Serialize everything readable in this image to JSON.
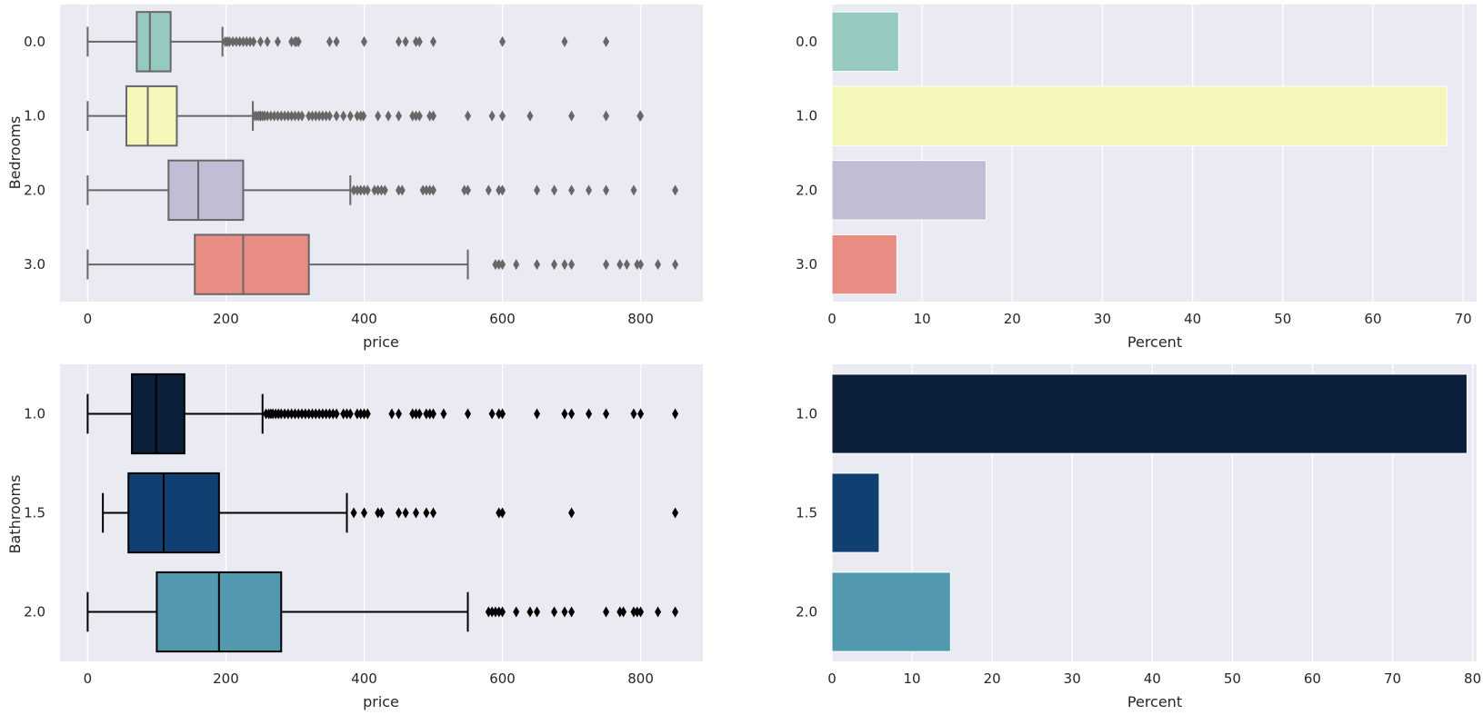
{
  "chart_data": [
    {
      "type": "boxplot",
      "orientation": "horizontal",
      "xlabel": "price",
      "ylabel": "Bedrooms",
      "xlim": [
        -40,
        890
      ],
      "xticks": [
        0,
        200,
        400,
        600,
        800
      ],
      "categories": [
        "0.0",
        "1.0",
        "2.0",
        "3.0"
      ],
      "grid": true,
      "box_edge_color": "#676767",
      "boxes": [
        {
          "category": "0.0",
          "color": "#96c9bf",
          "whisker_low": 0,
          "q1": 71,
          "median": 90,
          "q3": 120,
          "whisker_high": 195,
          "outliers": [
            199,
            202,
            205,
            210,
            215,
            220,
            225,
            230,
            235,
            240,
            250,
            260,
            275,
            295,
            300,
            302,
            305,
            350,
            360,
            400,
            450,
            460,
            475,
            480,
            500,
            600,
            690,
            750
          ]
        },
        {
          "category": "1.0",
          "color": "#f5f6b9",
          "whisker_low": 0,
          "q1": 56,
          "median": 87,
          "q3": 129,
          "whisker_high": 239,
          "outliers": [
            242,
            245,
            248,
            250,
            253,
            256,
            260,
            265,
            270,
            275,
            280,
            285,
            290,
            295,
            300,
            305,
            310,
            320,
            325,
            330,
            335,
            340,
            345,
            350,
            360,
            370,
            380,
            390,
            395,
            399,
            420,
            435,
            450,
            470,
            475,
            480,
            495,
            500,
            550,
            585,
            600,
            640,
            700,
            750,
            799,
            800
          ]
        },
        {
          "category": "2.0",
          "color": "#c0bdd5",
          "whisker_low": 0,
          "q1": 117,
          "median": 160,
          "q3": 225,
          "whisker_high": 380,
          "outliers": [
            385,
            390,
            395,
            400,
            405,
            415,
            420,
            425,
            430,
            450,
            455,
            485,
            490,
            495,
            500,
            545,
            550,
            580,
            595,
            600,
            650,
            675,
            700,
            725,
            750,
            790,
            850
          ]
        },
        {
          "category": "3.0",
          "color": "#e88d84",
          "whisker_low": 0,
          "q1": 155,
          "median": 225,
          "q3": 320,
          "whisker_high": 550,
          "outliers": [
            590,
            595,
            600,
            620,
            650,
            675,
            690,
            700,
            750,
            770,
            780,
            795,
            800,
            825,
            850
          ]
        }
      ]
    },
    {
      "type": "bar",
      "orientation": "horizontal",
      "xlabel": "Percent",
      "ylabel": "",
      "xlim": [
        0,
        71.5
      ],
      "xticks": [
        0,
        10,
        20,
        30,
        40,
        50,
        60,
        70
      ],
      "categories": [
        "0.0",
        "1.0",
        "2.0",
        "3.0"
      ],
      "values": [
        7.4,
        68.2,
        17.1,
        7.2
      ],
      "colors": [
        "#96c9bf",
        "#f5f6b9",
        "#c0bdd5",
        "#e88d84"
      ],
      "grid": true
    },
    {
      "type": "boxplot",
      "orientation": "horizontal",
      "xlabel": "price",
      "ylabel": "Bathrooms",
      "xlim": [
        -40,
        890
      ],
      "xticks": [
        0,
        200,
        400,
        600,
        800
      ],
      "categories": [
        "1.0",
        "1.5",
        "2.0"
      ],
      "grid": true,
      "box_edge_color": "#000000",
      "boxes": [
        {
          "category": "1.0",
          "color": "#0b1f3a",
          "whisker_low": 0,
          "q1": 64,
          "median": 99,
          "q3": 140,
          "whisker_high": 253,
          "outliers": [
            258,
            262,
            265,
            268,
            272,
            276,
            280,
            285,
            290,
            295,
            300,
            305,
            310,
            315,
            320,
            325,
            330,
            335,
            340,
            345,
            350,
            355,
            360,
            370,
            375,
            380,
            390,
            395,
            400,
            405,
            440,
            450,
            470,
            475,
            480,
            490,
            495,
            500,
            515,
            550,
            585,
            595,
            600,
            650,
            690,
            700,
            725,
            750,
            790,
            800,
            850
          ]
        },
        {
          "category": "1.5",
          "color": "#103f72",
          "whisker_low": 22,
          "q1": 59,
          "median": 110,
          "q3": 190,
          "whisker_high": 375,
          "outliers": [
            385,
            400,
            420,
            425,
            450,
            460,
            475,
            490,
            500,
            595,
            600,
            700,
            850
          ]
        },
        {
          "category": "2.0",
          "color": "#5299b0",
          "whisker_low": 0,
          "q1": 100,
          "median": 190,
          "q3": 280,
          "whisker_high": 550,
          "outliers": [
            580,
            585,
            590,
            595,
            600,
            620,
            640,
            650,
            675,
            690,
            700,
            750,
            770,
            775,
            790,
            795,
            800,
            825,
            850
          ]
        }
      ]
    },
    {
      "type": "bar",
      "orientation": "horizontal",
      "xlabel": "Percent",
      "ylabel": "",
      "xlim": [
        0,
        80.5
      ],
      "xticks": [
        0,
        10,
        20,
        30,
        40,
        50,
        60,
        70,
        80
      ],
      "categories": [
        "1.0",
        "1.5",
        "2.0"
      ],
      "values": [
        79.3,
        5.9,
        14.8
      ],
      "colors": [
        "#0b1f3a",
        "#103f72",
        "#5299b0"
      ],
      "grid": true
    }
  ]
}
